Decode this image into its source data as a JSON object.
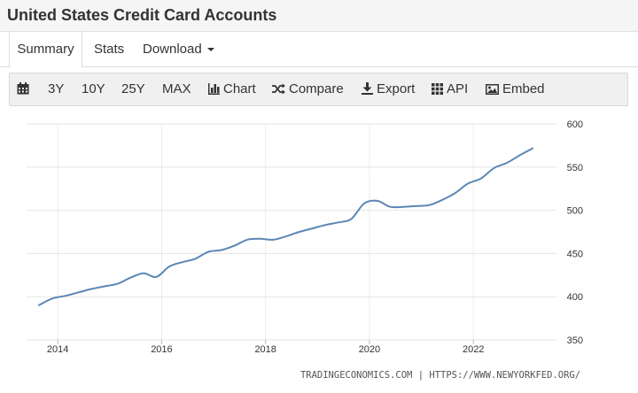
{
  "header": {
    "title": "United States Credit Card Accounts"
  },
  "tabs": [
    {
      "label": "Summary",
      "active": true
    },
    {
      "label": "Stats",
      "active": false
    },
    {
      "label": "Download",
      "active": false
    }
  ],
  "toolbar": {
    "items": [
      {
        "label": "",
        "icon": "calendar-icon"
      },
      {
        "label": "3Y"
      },
      {
        "label": "10Y"
      },
      {
        "label": "25Y"
      },
      {
        "label": "MAX"
      },
      {
        "label": "Chart",
        "icon": "bar-chart-icon"
      },
      {
        "label": "Compare",
        "icon": "shuffle-icon"
      },
      {
        "label": "Export",
        "icon": "download-icon"
      },
      {
        "label": "API",
        "icon": "grid-icon"
      },
      {
        "label": "Embed",
        "icon": "image-icon"
      }
    ]
  },
  "chart_data": {
    "type": "line",
    "title": "",
    "xlabel": "",
    "ylabel": "",
    "x_ticks": [
      "2014",
      "2016",
      "2018",
      "2020",
      "2022"
    ],
    "y_ticks": [
      "350",
      "400",
      "450",
      "500",
      "550",
      "600"
    ],
    "ylim": [
      350,
      600
    ],
    "xlim": [
      2013.4,
      2023.6
    ],
    "grid": true,
    "line_color": "#5b87b5",
    "series": [
      {
        "name": "",
        "x": [
          2013.63,
          2013.9,
          2014.15,
          2014.4,
          2014.65,
          2014.9,
          2015.15,
          2015.4,
          2015.65,
          2015.9,
          2016.15,
          2016.4,
          2016.65,
          2016.9,
          2017.15,
          2017.4,
          2017.65,
          2017.9,
          2018.15,
          2018.4,
          2018.65,
          2018.9,
          2019.15,
          2019.4,
          2019.65,
          2019.9,
          2020.15,
          2020.4,
          2020.65,
          2020.9,
          2021.15,
          2021.4,
          2021.65,
          2021.9,
          2022.15,
          2022.4,
          2022.65,
          2022.9,
          2023.15
        ],
        "values": [
          390,
          398,
          401,
          405,
          409,
          412,
          415,
          422,
          427,
          423,
          435,
          440,
          444,
          452,
          454,
          459,
          466,
          467,
          466,
          470,
          475,
          479,
          483,
          486,
          490,
          508,
          511,
          504,
          504,
          505,
          506,
          512,
          520,
          531,
          537,
          549,
          555,
          564,
          572
        ]
      }
    ]
  },
  "source_text": "TRADINGECONOMICS.COM | HTTPS://WWW.NEWYORKFED.ORG/"
}
